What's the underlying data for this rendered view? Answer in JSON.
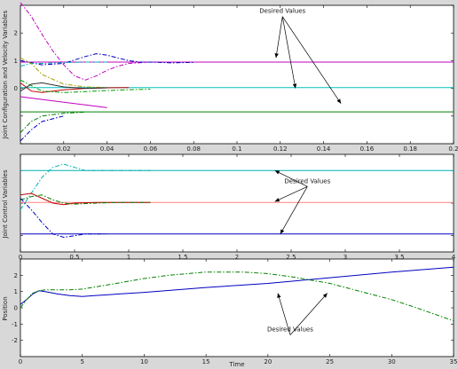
{
  "figure": {
    "background": "#d8d8d8",
    "plot_background": "#ffffff"
  },
  "chart_data": [
    {
      "type": "line",
      "ylabel": "Joint Configuration and Velocity Variables",
      "xlim": [
        0,
        0.2
      ],
      "ylim": [
        -2,
        3
      ],
      "xticks": [
        {
          "v": 0.02,
          "label": "0.02"
        },
        {
          "v": 0.04,
          "label": "0.04"
        },
        {
          "v": 0.06,
          "label": "0.06"
        },
        {
          "v": 0.08,
          "label": "0.08"
        },
        {
          "v": 0.1,
          "label": "0.1"
        },
        {
          "v": 0.12,
          "label": "0.12"
        },
        {
          "v": 0.14,
          "label": "0.14"
        },
        {
          "v": 0.16,
          "label": "0.16"
        },
        {
          "v": 0.18,
          "label": "0.18"
        },
        {
          "v": 0.2,
          "label": "0.2"
        }
      ],
      "yticks": [
        {
          "v": -2,
          "label": ""
        },
        {
          "v": -1,
          "label": ""
        },
        {
          "v": 0,
          "label": "0"
        },
        {
          "v": 1,
          "label": "1"
        },
        {
          "v": 2,
          "label": "2"
        },
        {
          "v": 3,
          "label": ""
        }
      ],
      "annotation": {
        "text": "Desired Values",
        "at": [
          0.121,
          2.72
        ],
        "arrows": [
          [
            0.118,
            1.1
          ],
          [
            0.127,
            0.0
          ],
          [
            0.148,
            -0.55
          ]
        ]
      },
      "series": [
        {
          "color": "#c000c0",
          "dash": false,
          "x": [
            0,
            0.1,
            0.2
          ],
          "y": [
            0.95,
            0.95,
            0.95
          ]
        },
        {
          "color": "#00c0c0",
          "dash": false,
          "x": [
            0,
            0.1,
            0.2
          ],
          "y": [
            0.03,
            0.03,
            0.03
          ]
        },
        {
          "color": "#008000",
          "dash": false,
          "x": [
            0,
            0.1,
            0.2
          ],
          "y": [
            -0.85,
            -0.85,
            -0.85
          ]
        },
        {
          "color": "#c000c0",
          "dash": true,
          "x": [
            0,
            0.005,
            0.01,
            0.015,
            0.02,
            0.025,
            0.03,
            0.035,
            0.04,
            0.045,
            0.05,
            0.06,
            0.07,
            0.08
          ],
          "y": [
            3.1,
            2.6,
            1.95,
            1.35,
            0.85,
            0.45,
            0.3,
            0.45,
            0.65,
            0.8,
            0.9,
            0.95,
            0.95,
            0.95
          ]
        },
        {
          "color": "#0000c0",
          "dash": true,
          "x": [
            0,
            0.01,
            0.02,
            0.03,
            0.035,
            0.04,
            0.045,
            0.05,
            0.055,
            0.06,
            0.07,
            0.08
          ],
          "y": [
            1.0,
            0.85,
            0.9,
            1.15,
            1.25,
            1.2,
            1.1,
            1.0,
            0.95,
            0.95,
            0.92,
            0.94
          ]
        },
        {
          "color": "#00b0b0",
          "dash": true,
          "x": [
            0,
            0.005,
            0.01,
            0.02,
            0.03,
            0.04
          ],
          "y": [
            0.8,
            0.9,
            0.9,
            0.93,
            0.95,
            0.95
          ]
        },
        {
          "color": "#a0a000",
          "dash": true,
          "x": [
            0,
            0.005,
            0.01,
            0.02,
            0.03,
            0.04
          ],
          "y": [
            1.1,
            0.9,
            0.5,
            0.15,
            0.05,
            0.03
          ]
        },
        {
          "color": "#c00000",
          "dash": false,
          "x": [
            0,
            0.005,
            0.01,
            0.02,
            0.03,
            0.04,
            0.05
          ],
          "y": [
            0.2,
            -0.1,
            -0.15,
            -0.05,
            0.0,
            0.02,
            0.03
          ]
        },
        {
          "color": "#00a000",
          "dash": true,
          "x": [
            0,
            0.005,
            0.01,
            0.02,
            0.03,
            0.04,
            0.05,
            0.06
          ],
          "y": [
            0.3,
            0.1,
            -0.1,
            -0.15,
            -0.12,
            -0.08,
            -0.05,
            -0.03
          ]
        },
        {
          "color": "#303030",
          "dash": false,
          "x": [
            0,
            0.005,
            0.01,
            0.02,
            0.03,
            0.04
          ],
          "y": [
            -0.1,
            0.15,
            0.2,
            0.05,
            0.0,
            0.02
          ]
        },
        {
          "color": "#c000c0",
          "dash": false,
          "x": [
            0,
            0.01,
            0.02,
            0.03,
            0.04
          ],
          "y": [
            -0.3,
            -0.4,
            -0.5,
            -0.6,
            -0.7
          ]
        },
        {
          "color": "#008000",
          "dash": true,
          "x": [
            0,
            0.005,
            0.01,
            0.02,
            0.03
          ],
          "y": [
            -1.6,
            -1.2,
            -1.0,
            -0.9,
            -0.86
          ]
        },
        {
          "color": "#0000c0",
          "dash": true,
          "x": [
            0,
            0.005,
            0.01,
            0.02
          ],
          "y": [
            -1.9,
            -1.5,
            -1.2,
            -1.0
          ]
        }
      ]
    },
    {
      "type": "line",
      "ylabel": "Joint Control Variables",
      "xlim": [
        0,
        4
      ],
      "ylim": [
        -1.5,
        1.5
      ],
      "xticks": [
        {
          "v": 0,
          "label": "0"
        },
        {
          "v": 0.5,
          "label": "0.5"
        },
        {
          "v": 1,
          "label": "1"
        },
        {
          "v": 1.5,
          "label": "1.5"
        },
        {
          "v": 2,
          "label": "2"
        },
        {
          "v": 2.5,
          "label": "2.5"
        },
        {
          "v": 3,
          "label": "3"
        },
        {
          "v": 3.5,
          "label": "3.5"
        },
        {
          "v": 4,
          "label": "4"
        }
      ],
      "yticks": [
        {
          "v": -1,
          "label": ""
        },
        {
          "v": 0,
          "label": ""
        },
        {
          "v": 1,
          "label": ""
        }
      ],
      "annotation": {
        "text": "Desired Values",
        "at": [
          2.65,
          0.62
        ],
        "arrows": [
          [
            2.35,
            1.0
          ],
          [
            2.35,
            0.05
          ],
          [
            2.4,
            -0.95
          ]
        ]
      },
      "series": [
        {
          "color": "#00b0b0",
          "dash": false,
          "x": [
            0,
            2,
            4
          ],
          "y": [
            1.0,
            1.0,
            1.0
          ]
        },
        {
          "color": "#ff8080",
          "dash": false,
          "x": [
            0,
            2,
            4
          ],
          "y": [
            0.02,
            0.02,
            0.02
          ]
        },
        {
          "color": "#0000c0",
          "dash": false,
          "x": [
            0,
            2,
            4
          ],
          "y": [
            -0.95,
            -0.95,
            -0.95
          ]
        },
        {
          "color": "#00b0b0",
          "dash": true,
          "x": [
            0,
            0.1,
            0.2,
            0.3,
            0.4,
            0.5,
            0.6,
            0.8,
            1.0,
            1.2
          ],
          "y": [
            -0.2,
            0.3,
            0.8,
            1.1,
            1.2,
            1.1,
            1.0,
            1.0,
            1.0,
            1.0
          ]
        },
        {
          "color": "#c00000",
          "dash": false,
          "x": [
            0,
            0.1,
            0.2,
            0.3,
            0.4,
            0.5,
            0.7,
            0.9,
            1.2
          ],
          "y": [
            0.25,
            0.3,
            0.15,
            0.0,
            -0.05,
            0.0,
            0.02,
            0.02,
            0.02
          ]
        },
        {
          "color": "#008000",
          "dash": true,
          "x": [
            0,
            0.1,
            0.2,
            0.3,
            0.4,
            0.5,
            0.7,
            0.9,
            1.2
          ],
          "y": [
            0.1,
            0.2,
            0.25,
            0.1,
            0.0,
            -0.03,
            0.0,
            0.02,
            0.02
          ]
        },
        {
          "color": "#0000c0",
          "dash": true,
          "x": [
            0,
            0.1,
            0.2,
            0.3,
            0.4,
            0.5,
            0.6,
            0.7,
            0.8
          ],
          "y": [
            0.15,
            -0.2,
            -0.6,
            -0.95,
            -1.05,
            -1.0,
            -0.95,
            -0.95,
            -0.95
          ]
        }
      ]
    },
    {
      "type": "line",
      "xlabel": "Time",
      "ylabel": "Position",
      "xlim": [
        0,
        35
      ],
      "ylim": [
        -3,
        3
      ],
      "xticks": [
        {
          "v": 0,
          "label": "0"
        },
        {
          "v": 5,
          "label": "5"
        },
        {
          "v": 10,
          "label": "10"
        },
        {
          "v": 15,
          "label": "15"
        },
        {
          "v": 20,
          "label": "20"
        },
        {
          "v": 25,
          "label": "25"
        },
        {
          "v": 30,
          "label": "30"
        },
        {
          "v": 35,
          "label": "35"
        }
      ],
      "yticks": [
        {
          "v": -2,
          "label": "-2"
        },
        {
          "v": -1,
          "label": "-1"
        },
        {
          "v": 0,
          "label": "0"
        },
        {
          "v": 1,
          "label": "1"
        },
        {
          "v": 2,
          "label": "2"
        }
      ],
      "annotation": {
        "text": "Desired Values",
        "at": [
          21.8,
          -1.45
        ],
        "arrows": [
          [
            20.8,
            0.9
          ],
          [
            24.8,
            0.9
          ]
        ]
      },
      "series": [
        {
          "color": "#0000c0",
          "dash": false,
          "x": [
            0,
            0.5,
            1,
            1.5,
            2,
            3,
            4,
            5,
            6,
            8,
            10,
            15,
            20,
            25,
            30,
            35
          ],
          "y": [
            0.2,
            0.5,
            0.85,
            1.05,
            1.0,
            0.85,
            0.75,
            0.7,
            0.75,
            0.85,
            0.95,
            1.25,
            1.5,
            1.85,
            2.2,
            2.5
          ]
        },
        {
          "color": "#008000",
          "dash": true,
          "x": [
            0,
            0.5,
            1,
            1.5,
            2,
            3,
            4,
            5,
            7,
            10,
            12,
            15,
            18,
            20,
            22,
            25,
            28,
            30,
            32,
            35
          ],
          "y": [
            0.0,
            0.5,
            0.9,
            1.05,
            1.1,
            1.1,
            1.1,
            1.15,
            1.4,
            1.8,
            2.0,
            2.2,
            2.2,
            2.1,
            1.9,
            1.5,
            0.9,
            0.5,
            0.0,
            -0.8
          ]
        }
      ]
    }
  ]
}
